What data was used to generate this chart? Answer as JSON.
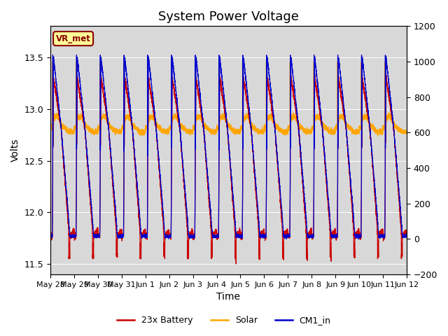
{
  "title": "System Power Voltage",
  "xlabel": "Time",
  "ylabel_left": "Volts",
  "ylim_left": [
    11.4,
    13.8
  ],
  "ylim_right": [
    -200,
    1200
  ],
  "x_tick_labels": [
    "May 28",
    "May 29",
    "May 30",
    "May 31",
    "Jun 1",
    "Jun 2",
    "Jun 3",
    "Jun 4",
    "Jun 5",
    "Jun 6",
    "Jun 7",
    "Jun 8",
    "Jun 9",
    "Jun 10",
    "Jun 11",
    "Jun 12"
  ],
  "annotation_text": "VR_met",
  "annotation_color": "#8B0000",
  "annotation_bg": "#FFFF99",
  "bg_color": "#D8D8D8",
  "line_battery_color": "#CC0000",
  "line_solar_color": "#FFA500",
  "line_cm1_color": "#0000CC",
  "legend_labels": [
    "23x Battery",
    "Solar",
    "CM1_in"
  ],
  "title_fontsize": 13,
  "label_fontsize": 10,
  "tick_fontsize": 9
}
